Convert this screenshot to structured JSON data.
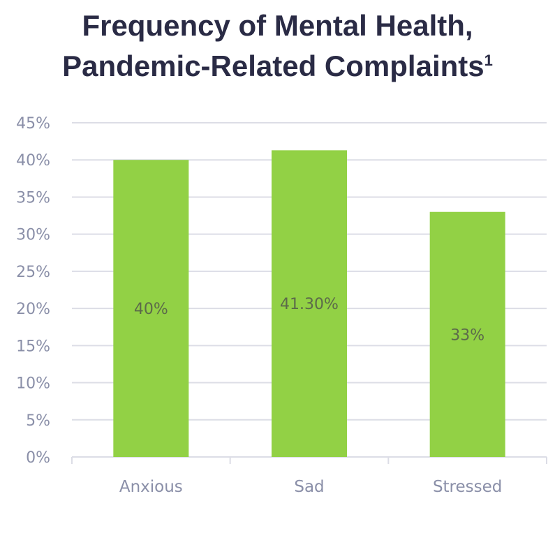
{
  "title": {
    "line1": "Frequency of Mental Health,",
    "line2": "Pandemic-Related Complaints",
    "superscript": "1"
  },
  "colors": {
    "bar": "#92d145",
    "grid": "#dcdde6",
    "axis_text": "#8a8fa8",
    "title": "#2a2b45"
  },
  "chart_data": {
    "type": "bar",
    "title": "Frequency of Mental Health, Pandemic-Related Complaints",
    "xlabel": "",
    "ylabel": "",
    "categories": [
      "Anxious",
      "Sad",
      "Stressed"
    ],
    "values": [
      40,
      41.3,
      33
    ],
    "data_labels": [
      "40%",
      "41.30%",
      "33%"
    ],
    "ylim": [
      0,
      45
    ],
    "yticks": [
      0,
      5,
      10,
      15,
      20,
      25,
      30,
      35,
      40,
      45
    ],
    "ytick_labels": [
      "0%",
      "5%",
      "10%",
      "15%",
      "20%",
      "25%",
      "30%",
      "35%",
      "40%",
      "45%"
    ],
    "grid": true,
    "legend": "none"
  }
}
